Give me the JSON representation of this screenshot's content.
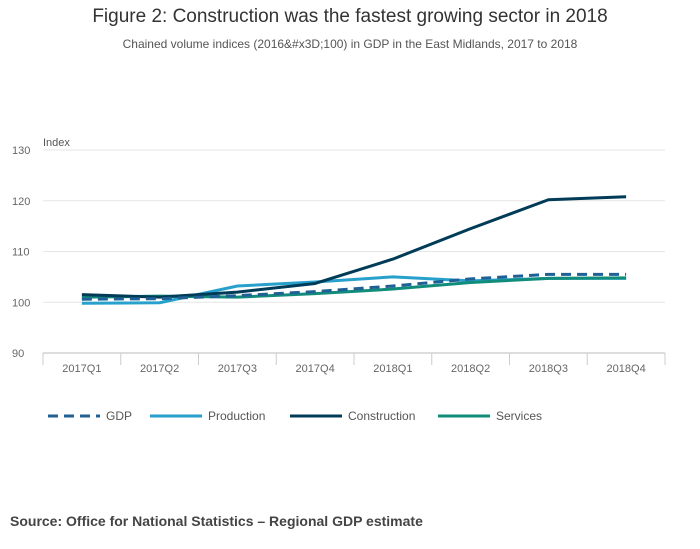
{
  "title": "Figure 2: Construction was the fastest growing sector in 2018",
  "subtitle": "Chained volume indices (2016&#x3D;100) in GDP in the East Midlands, 2017 to 2018",
  "source": "Source: Office for National Statistics – Regional GDP estimate",
  "chart_data": {
    "type": "line",
    "title": "Figure 2: Construction was the fastest growing sector in 2018",
    "xlabel": "",
    "ylabel": "Index",
    "categories": [
      "2017Q1",
      "2017Q2",
      "2017Q3",
      "2017Q4",
      "2018Q1",
      "2018Q2",
      "2018Q3",
      "2018Q4"
    ],
    "ylim": [
      90,
      130
    ],
    "yticks": [
      90,
      100,
      110,
      120,
      130
    ],
    "grid": true,
    "legend": "bottom",
    "series": [
      {
        "name": "GDP",
        "color": "#206095",
        "dash": true,
        "values": [
          100.6,
          100.7,
          101.3,
          102.1,
          103.2,
          104.6,
          105.5,
          105.5
        ]
      },
      {
        "name": "Production",
        "color": "#27a0cc",
        "dash": false,
        "values": [
          99.8,
          99.9,
          103.2,
          104.0,
          105.0,
          104.2,
          104.7,
          104.7
        ]
      },
      {
        "name": "Construction",
        "color": "#003c57",
        "dash": false,
        "values": [
          101.5,
          101.0,
          102.0,
          103.7,
          108.5,
          114.5,
          120.2,
          120.8
        ]
      },
      {
        "name": "Services",
        "color": "#118c7b",
        "dash": false,
        "values": [
          101.0,
          101.2,
          101.0,
          101.7,
          102.6,
          103.9,
          104.7,
          104.8
        ]
      }
    ]
  }
}
